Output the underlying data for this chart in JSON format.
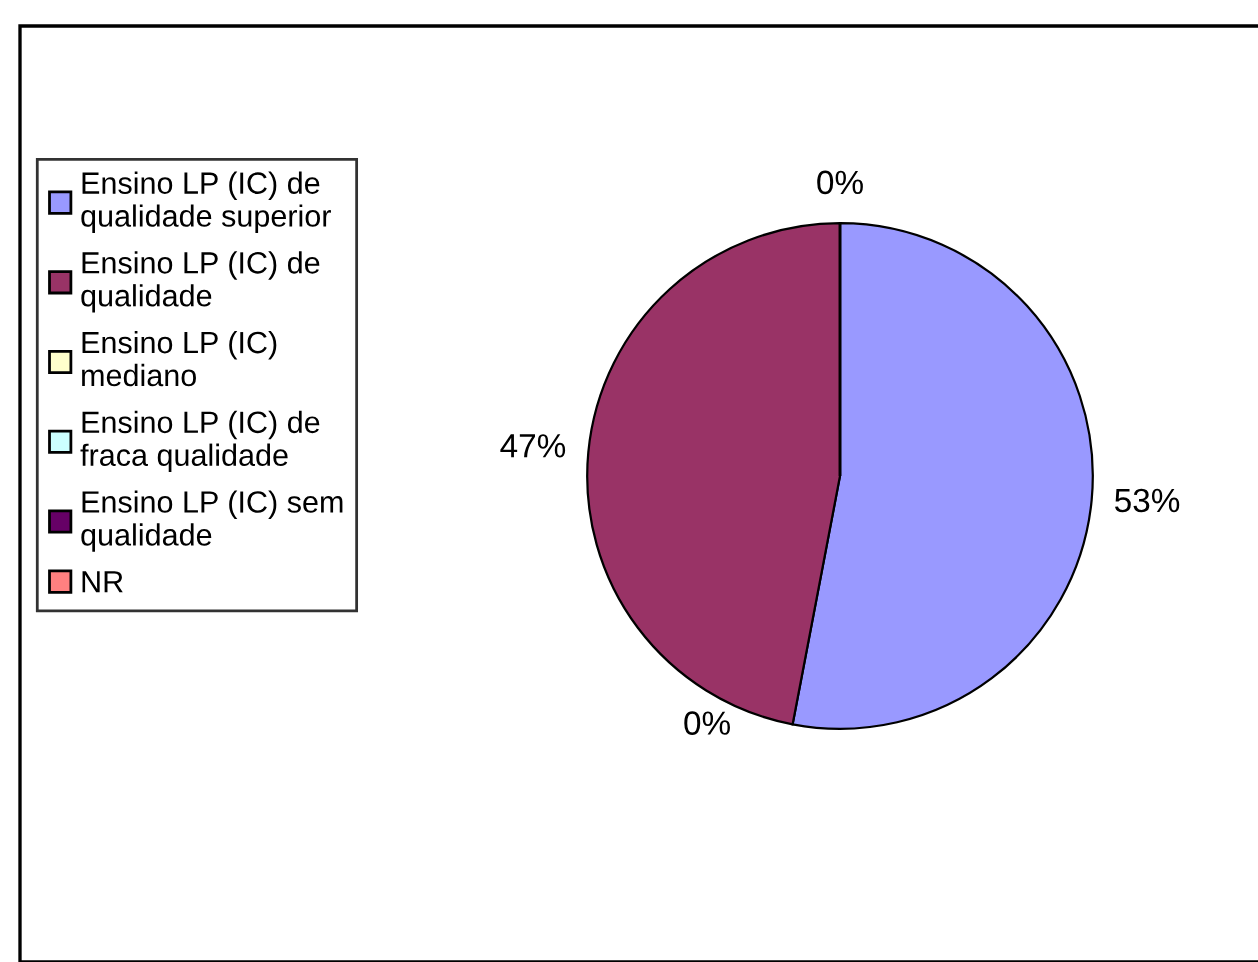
{
  "chart_data": {
    "type": "pie",
    "categories": [
      "Ensino LP (IC) de qualidade superior",
      "Ensino LP (IC) de qualidade",
      "Ensino LP (IC) mediano",
      "Ensino LP (IC) de fraca qualidade",
      "Ensino LP (IC) sem qualidade",
      "NR"
    ],
    "values": [
      53,
      47,
      0,
      0,
      0,
      0
    ],
    "colors": [
      "#9999ff",
      "#993366",
      "#ffffcc",
      "#ccffff",
      "#660066",
      "#ff8080"
    ],
    "value_labels": [
      "53%",
      "47%",
      "0%",
      null,
      null,
      null
    ],
    "annotations": [
      "0%"
    ],
    "legend": "left"
  }
}
